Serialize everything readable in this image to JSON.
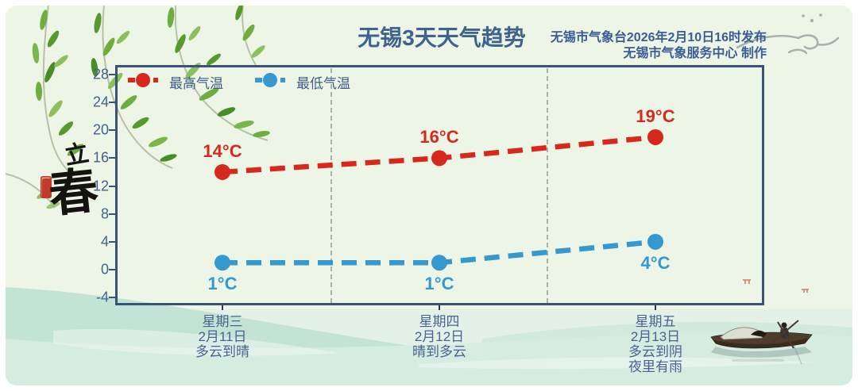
{
  "header": {
    "title": "无锡3天天气趋势",
    "issued_line1": "无锡市气象台2026年2月10日16时发布",
    "issued_line2": "无锡市气象服务中心 制作"
  },
  "seal": {
    "char1": "立",
    "char2": "春",
    "term": "立春"
  },
  "colors": {
    "max_temp": "#d7281e",
    "min_temp": "#3598cf",
    "axis_text": "#44618f",
    "frame": "#3a5278",
    "title_text": "#40628f",
    "background": "#edf5e6"
  },
  "chart_data": {
    "type": "line",
    "title": "无锡3天天气趋势",
    "line_style": "dashed",
    "grid": "vertical-dashed-between-categories",
    "legend_position": "top-left-inside",
    "unit": "°C",
    "ylim": [
      -4,
      28
    ],
    "y_ticks": [
      28,
      24,
      20,
      16,
      12,
      8,
      4,
      0,
      -4
    ],
    "x_categories": [
      {
        "lines": [
          "星期三",
          "2月11日",
          "多云到晴"
        ]
      },
      {
        "lines": [
          "星期四",
          "2月12日",
          "晴到多云"
        ]
      },
      {
        "lines": [
          "星期五",
          "2月13日",
          "多云到阴",
          "夜里有雨"
        ]
      }
    ],
    "series": [
      {
        "name": "最高气温",
        "color": "#d7281e",
        "values": [
          14,
          16,
          19
        ],
        "point_labels": [
          "14°C",
          "16°C",
          "19°C"
        ],
        "label_side": "above"
      },
      {
        "name": "最低气温",
        "color": "#3598cf",
        "values": [
          1,
          1,
          4
        ],
        "point_labels": [
          "1°C",
          "1°C",
          "4°C"
        ],
        "label_side": "below"
      }
    ]
  }
}
